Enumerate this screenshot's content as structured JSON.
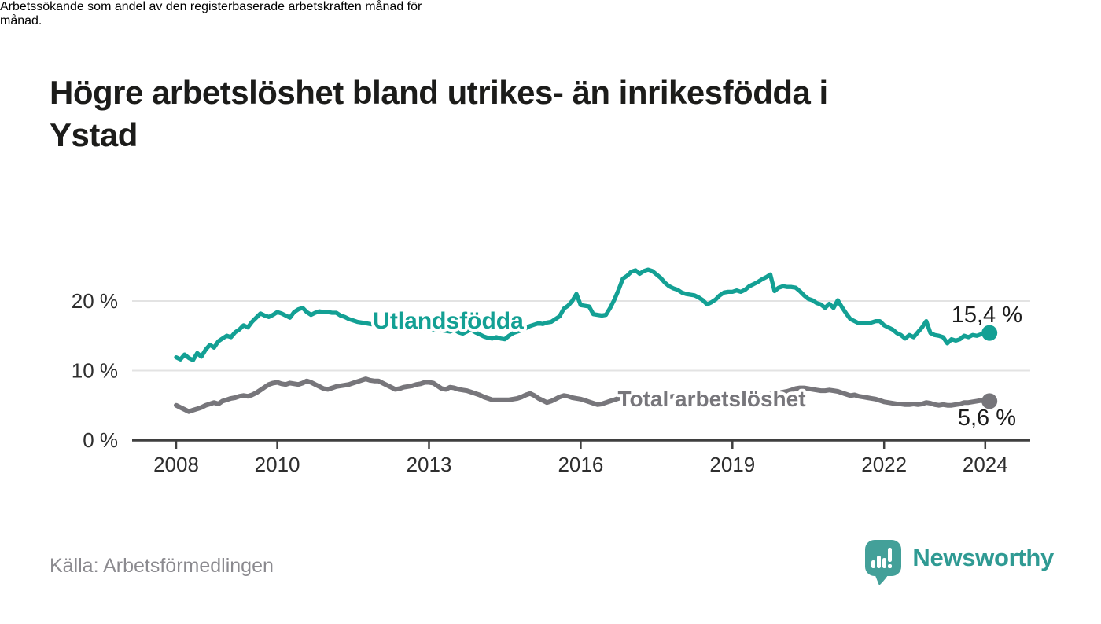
{
  "header": {
    "title_lines": [
      "Högre arbetslöshet bland utrikes- än inrikesfödda i",
      "Ystad"
    ],
    "subtitle_lines": [
      "Arbetssökande som andel av den registerbaserade arbetskraften månad för",
      "månad."
    ]
  },
  "footer": {
    "source": "Källa: Arbetsförmedlingen",
    "brand": "Newsworthy",
    "brand_icon": "speech-bubble-bar-chart",
    "brand_color": "#2f9a93",
    "brand_icon_color": "#43a099"
  },
  "chart_data": {
    "type": "line",
    "title": "Högre arbetslöshet bland utrikes- än inrikesfödda i Ystad",
    "subtitle": "Arbetssökande som andel av den registerbaserade arbetskraften månad för månad.",
    "unit": "%",
    "x_start_year": 2008,
    "x_step_months": 1,
    "x_end": "2024-02",
    "x_ticks": [
      2008,
      2010,
      2013,
      2016,
      2019,
      2022,
      2024
    ],
    "y_ticks": [
      {
        "value": 0,
        "label": "0 %"
      },
      {
        "value": 10,
        "label": "10 %"
      },
      {
        "value": 20,
        "label": "20 %"
      }
    ],
    "ylim": [
      0,
      25.5
    ],
    "grid": "horizontal",
    "legend_position": "inline-labels",
    "colors": {
      "grid": "#e3e3e3",
      "axis": "#3f3f3f",
      "tick_text": "#2e2e2e",
      "end_label_text": "#1b1b1b"
    },
    "series": [
      {
        "name": "Utlandsfödda",
        "color": "#13a094",
        "end_label": "15,4 %",
        "end_value": 15.4,
        "values": [
          11.9,
          11.6,
          12.3,
          11.8,
          11.5,
          12.5,
          12.0,
          13.0,
          13.7,
          13.3,
          14.2,
          14.6,
          15.0,
          14.8,
          15.5,
          15.9,
          16.5,
          16.2,
          17.0,
          17.6,
          18.2,
          17.9,
          17.7,
          18.0,
          18.4,
          18.2,
          17.9,
          17.6,
          18.4,
          18.8,
          19.0,
          18.4,
          18.0,
          18.3,
          18.5,
          18.4,
          18.4,
          18.3,
          18.3,
          17.9,
          17.7,
          17.4,
          17.2,
          17.0,
          16.9,
          16.8,
          16.7,
          16.6,
          16.6,
          16.5,
          16.4,
          16.4,
          16.3,
          16.3,
          16.2,
          16.2,
          16.1,
          16.1,
          16.0,
          16.0,
          16.0,
          15.9,
          15.9,
          15.8,
          15.7,
          15.6,
          15.9,
          15.5,
          15.3,
          15.6,
          15.9,
          15.5,
          15.2,
          14.9,
          14.7,
          14.6,
          14.8,
          14.6,
          14.5,
          15.0,
          15.4,
          15.6,
          15.8,
          16.1,
          16.4,
          16.6,
          16.8,
          16.7,
          16.9,
          17.0,
          17.4,
          17.8,
          18.9,
          19.3,
          20.0,
          21.0,
          19.4,
          19.3,
          19.2,
          18.1,
          18.0,
          17.9,
          18.0,
          19.0,
          20.2,
          21.6,
          23.2,
          23.6,
          24.2,
          24.4,
          23.9,
          24.3,
          24.5,
          24.3,
          23.8,
          23.3,
          22.6,
          22.1,
          21.8,
          21.6,
          21.2,
          21.0,
          20.9,
          20.8,
          20.5,
          20.1,
          19.5,
          19.8,
          20.2,
          20.8,
          21.2,
          21.3,
          21.3,
          21.5,
          21.3,
          21.6,
          22.1,
          22.4,
          22.7,
          23.1,
          23.4,
          23.8,
          21.4,
          21.9,
          22.1,
          22.0,
          22.0,
          21.9,
          21.4,
          20.8,
          20.3,
          20.1,
          19.7,
          19.5,
          19.0,
          19.6,
          19.0,
          20.1,
          19.1,
          18.2,
          17.4,
          17.1,
          16.8,
          16.8,
          16.8,
          16.9,
          17.1,
          17.1,
          16.5,
          16.2,
          15.9,
          15.4,
          15.1,
          14.6,
          15.1,
          14.8,
          15.5,
          16.2,
          17.1,
          15.4,
          15.1,
          15.0,
          14.8,
          13.9,
          14.5,
          14.3,
          14.5,
          15.0,
          14.8,
          15.1,
          15.0,
          15.2,
          15.3,
          15.4
        ]
      },
      {
        "name": "Total arbetslöshet",
        "color": "#77767b",
        "end_label": "5,6 %",
        "end_value": 5.6,
        "values": [
          5.0,
          4.7,
          4.4,
          4.1,
          4.3,
          4.5,
          4.7,
          5.0,
          5.2,
          5.4,
          5.2,
          5.6,
          5.8,
          6.0,
          6.1,
          6.3,
          6.4,
          6.3,
          6.5,
          6.8,
          7.2,
          7.6,
          8.0,
          8.2,
          8.3,
          8.1,
          8.0,
          8.2,
          8.1,
          8.0,
          8.2,
          8.5,
          8.3,
          8.0,
          7.7,
          7.4,
          7.3,
          7.5,
          7.7,
          7.8,
          7.9,
          8.0,
          8.2,
          8.4,
          8.6,
          8.8,
          8.6,
          8.5,
          8.5,
          8.2,
          7.9,
          7.6,
          7.3,
          7.4,
          7.6,
          7.7,
          7.8,
          8.0,
          8.1,
          8.3,
          8.3,
          8.2,
          7.8,
          7.4,
          7.3,
          7.6,
          7.5,
          7.3,
          7.2,
          7.1,
          6.9,
          6.7,
          6.5,
          6.2,
          6.0,
          5.8,
          5.8,
          5.8,
          5.8,
          5.8,
          5.9,
          6.0,
          6.2,
          6.5,
          6.7,
          6.4,
          6.0,
          5.7,
          5.4,
          5.6,
          5.9,
          6.2,
          6.4,
          6.3,
          6.1,
          6.0,
          5.9,
          5.7,
          5.5,
          5.3,
          5.1,
          5.2,
          5.4,
          5.6,
          5.8,
          6.0,
          6.1,
          6.2,
          6.2,
          6.1,
          6.0,
          5.9,
          5.9,
          6.0,
          6.1,
          6.1,
          6.2,
          6.2,
          6.3,
          6.3,
          6.2,
          6.1,
          6.0,
          5.9,
          5.9,
          5.8,
          5.9,
          6.0,
          6.1,
          6.1,
          6.2,
          6.2,
          6.1,
          6.0,
          6.0,
          6.1,
          6.1,
          6.2,
          6.3,
          6.4,
          6.5,
          6.6,
          6.7,
          6.8,
          6.9,
          7.0,
          7.2,
          7.4,
          7.5,
          7.5,
          7.4,
          7.3,
          7.2,
          7.1,
          7.1,
          7.2,
          7.1,
          7.0,
          6.8,
          6.6,
          6.4,
          6.5,
          6.3,
          6.2,
          6.1,
          6.0,
          5.9,
          5.7,
          5.5,
          5.4,
          5.3,
          5.2,
          5.2,
          5.1,
          5.1,
          5.2,
          5.1,
          5.2,
          5.4,
          5.3,
          5.1,
          5.0,
          5.1,
          5.0,
          5.0,
          5.1,
          5.2,
          5.4,
          5.4,
          5.5,
          5.6,
          5.7,
          5.6,
          5.6
        ]
      }
    ]
  }
}
